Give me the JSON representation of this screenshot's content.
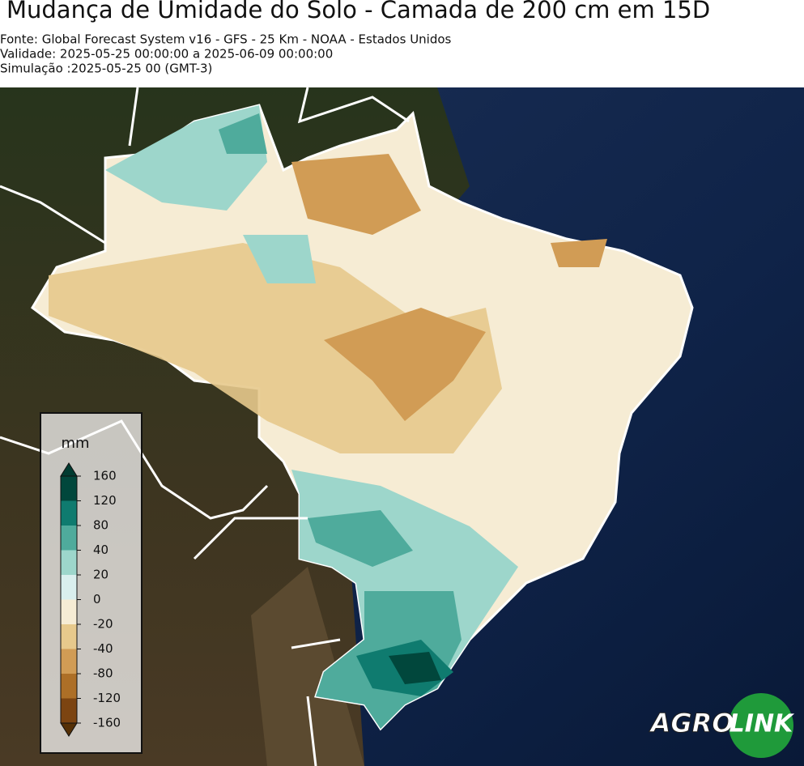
{
  "header": {
    "title": "Mudança de Umidade do Solo - Camada de 200 cm em 15D",
    "lines": [
      "Fonte: Global Forecast System v16 - GFS - 25 Km - NOAA - Estados Unidos",
      "Validade: 2025-05-25 00:00:00 a 2025-06-09 00:00:00",
      "Simulação :2025-05-25 00 (GMT-3)"
    ]
  },
  "legend": {
    "title": "mm",
    "ticks": [
      160,
      120,
      80,
      40,
      20,
      0,
      -20,
      -40,
      -80,
      -120,
      -160
    ],
    "colors": [
      "#01473c",
      "#0f7b6f",
      "#4fab9c",
      "#9dd6cb",
      "#d9efee",
      "#f6ecd4",
      "#e7c98c",
      "#d19c55",
      "#ad6f27",
      "#7c4411"
    ],
    "extend_colors": [
      "#003b31",
      "#553006"
    ]
  },
  "logo": {
    "left": "AGRO",
    "right": "LINK"
  }
}
